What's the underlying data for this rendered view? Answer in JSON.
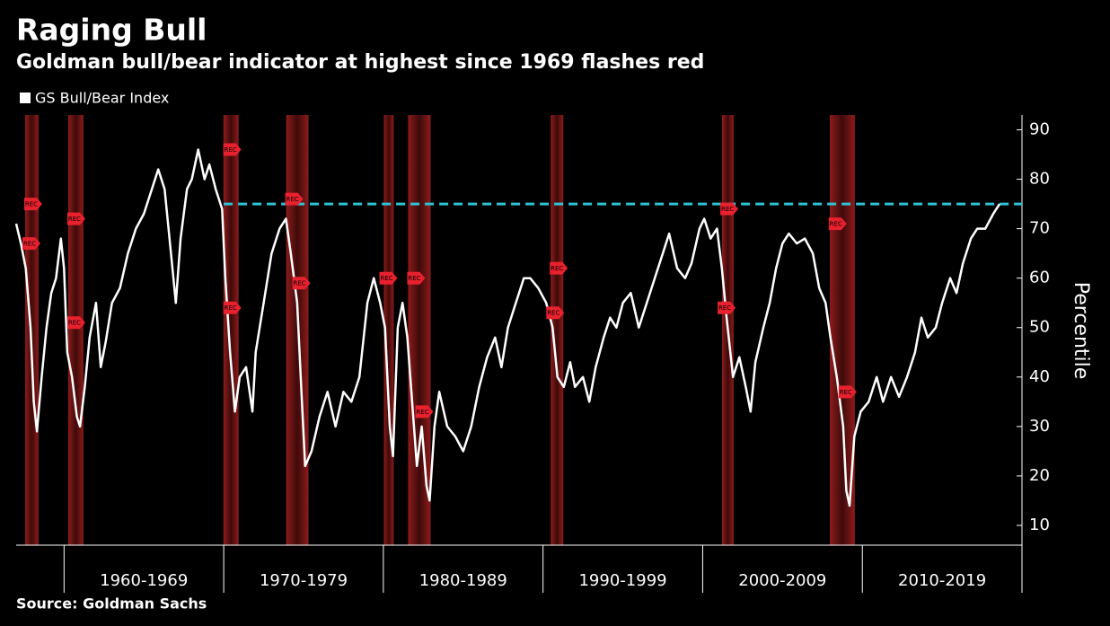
{
  "chart_data": {
    "type": "line",
    "title": "Raging Bull",
    "subtitle": "Goldman bull/bear indicator at highest since 1969 flashes red",
    "y_axis_label": "Percentile",
    "source": "Source: Goldman Sachs",
    "legend_position": "top-left",
    "x": [
      1957.0,
      1957.3,
      1957.6,
      1957.9,
      1958.1,
      1958.3,
      1958.6,
      1958.9,
      1959.2,
      1959.5,
      1959.8,
      1960.0,
      1960.2,
      1960.5,
      1960.8,
      1961.0,
      1961.3,
      1961.6,
      1962.0,
      1962.3,
      1962.6,
      1963.0,
      1963.5,
      1964.0,
      1964.5,
      1965.0,
      1965.5,
      1965.9,
      1966.3,
      1966.7,
      1967.0,
      1967.3,
      1967.7,
      1968.0,
      1968.4,
      1968.8,
      1969.1,
      1969.5,
      1969.9,
      1970.1,
      1970.4,
      1970.7,
      1971.0,
      1971.4,
      1971.8,
      1972.0,
      1972.5,
      1973.0,
      1973.5,
      1973.9,
      1974.2,
      1974.6,
      1974.9,
      1975.1,
      1975.5,
      1976.0,
      1976.5,
      1977.0,
      1977.5,
      1978.0,
      1978.5,
      1979.0,
      1979.4,
      1979.8,
      1980.1,
      1980.4,
      1980.6,
      1980.9,
      1981.2,
      1981.5,
      1981.8,
      1982.1,
      1982.4,
      1982.7,
      1982.9,
      1983.2,
      1983.5,
      1984.0,
      1984.5,
      1985.0,
      1985.5,
      1986.0,
      1986.5,
      1987.0,
      1987.4,
      1987.8,
      1988.3,
      1988.8,
      1989.2,
      1989.7,
      1990.2,
      1990.6,
      1990.9,
      1991.3,
      1991.7,
      1992.0,
      1992.5,
      1992.9,
      1993.3,
      1993.8,
      1994.2,
      1994.6,
      1995.0,
      1995.5,
      1996.0,
      1996.5,
      1997.0,
      1997.5,
      1997.9,
      1998.4,
      1998.9,
      1999.3,
      1999.8,
      2000.1,
      2000.5,
      2000.9,
      2001.2,
      2001.5,
      2001.9,
      2002.3,
      2002.7,
      2003.0,
      2003.3,
      2003.8,
      2004.2,
      2004.6,
      2005.0,
      2005.4,
      2005.9,
      2006.4,
      2006.9,
      2007.3,
      2007.7,
      2008.0,
      2008.4,
      2008.8,
      2009.0,
      2009.2,
      2009.5,
      2009.9,
      2010.4,
      2010.9,
      2011.3,
      2011.8,
      2012.3,
      2012.8,
      2013.3,
      2013.7,
      2014.1,
      2014.6,
      2015.0,
      2015.5,
      2015.9,
      2016.3,
      2016.8,
      2017.2,
      2017.7,
      2018.2,
      2018.6
    ],
    "series": [
      {
        "name": "GS Bull/Bear Index",
        "color": "#ffffff",
        "values": [
          71,
          67,
          62,
          50,
          35,
          29,
          40,
          50,
          57,
          60,
          68,
          62,
          45,
          40,
          32,
          30,
          38,
          48,
          55,
          42,
          47,
          55,
          58,
          65,
          70,
          73,
          78,
          82,
          78,
          65,
          55,
          68,
          78,
          80,
          86,
          80,
          83,
          78,
          74,
          60,
          45,
          33,
          40,
          42,
          33,
          45,
          55,
          65,
          70,
          72,
          65,
          55,
          35,
          22,
          25,
          32,
          37,
          30,
          37,
          35,
          40,
          55,
          60,
          55,
          50,
          30,
          24,
          50,
          55,
          48,
          35,
          22,
          30,
          18,
          15,
          30,
          37,
          30,
          28,
          25,
          30,
          38,
          44,
          48,
          42,
          50,
          55,
          60,
          60,
          58,
          55,
          50,
          40,
          38,
          43,
          38,
          40,
          35,
          42,
          48,
          52,
          50,
          55,
          57,
          50,
          55,
          60,
          65,
          69,
          62,
          60,
          63,
          70,
          72,
          68,
          70,
          62,
          52,
          40,
          44,
          38,
          33,
          43,
          50,
          55,
          62,
          67,
          69,
          67,
          68,
          65,
          58,
          55,
          48,
          40,
          30,
          17,
          14,
          28,
          33,
          35,
          40,
          35,
          40,
          36,
          40,
          45,
          52,
          48,
          50,
          55,
          60,
          57,
          63,
          68,
          70,
          70,
          73,
          75
        ]
      }
    ],
    "recessions": [
      [
        1957.56,
        1958.4
      ],
      [
        1960.26,
        1961.21
      ],
      [
        1969.98,
        1970.93
      ],
      [
        1973.91,
        1975.31
      ],
      [
        1980.03,
        1980.65
      ],
      [
        1981.55,
        1982.96
      ],
      [
        1990.48,
        1991.27
      ],
      [
        2001.21,
        2001.94
      ],
      [
        2007.96,
        2009.53
      ]
    ],
    "recession_markers": [
      {
        "x": 1958.01,
        "y": 75,
        "label": "REC"
      },
      {
        "x": 1957.9,
        "y": 67,
        "label": "REC"
      },
      {
        "x": 1960.71,
        "y": 72,
        "label": "REC"
      },
      {
        "x": 1960.71,
        "y": 51,
        "label": "REC"
      },
      {
        "x": 1970.48,
        "y": 86,
        "label": "REC"
      },
      {
        "x": 1970.48,
        "y": 54,
        "label": "REC"
      },
      {
        "x": 1974.36,
        "y": 76,
        "label": "REC"
      },
      {
        "x": 1974.81,
        "y": 59,
        "label": "REC"
      },
      {
        "x": 1980.26,
        "y": 60,
        "label": "REC"
      },
      {
        "x": 1982.0,
        "y": 60,
        "label": "REC"
      },
      {
        "x": 1982.51,
        "y": 33,
        "label": "REC"
      },
      {
        "x": 1990.93,
        "y": 62,
        "label": "REC"
      },
      {
        "x": 1990.71,
        "y": 53,
        "label": "REC"
      },
      {
        "x": 2001.61,
        "y": 74,
        "label": "REC"
      },
      {
        "x": 2001.44,
        "y": 54,
        "label": "REC"
      },
      {
        "x": 2008.4,
        "y": 71,
        "label": "REC"
      },
      {
        "x": 2009.02,
        "y": 37,
        "label": "REC"
      }
    ],
    "reference_line": {
      "value": 75,
      "start": 1970,
      "color": "#2ec4d6"
    },
    "xlim": [
      1957,
      2020
    ],
    "decade_dividers": [
      1960,
      1970,
      1980,
      1990,
      2000,
      2010,
      2020
    ],
    "xticks": [
      {
        "value": 1965,
        "label": "1960-1969"
      },
      {
        "value": 1975,
        "label": "1970-1979"
      },
      {
        "value": 1985,
        "label": "1980-1989"
      },
      {
        "value": 1995,
        "label": "1990-1999"
      },
      {
        "value": 2005,
        "label": "2000-2009"
      },
      {
        "value": 2015,
        "label": "2010-2019"
      }
    ],
    "ylim": [
      6,
      93
    ],
    "yticks": [
      10,
      20,
      30,
      40,
      50,
      60,
      70,
      80,
      90
    ],
    "grid": false
  }
}
